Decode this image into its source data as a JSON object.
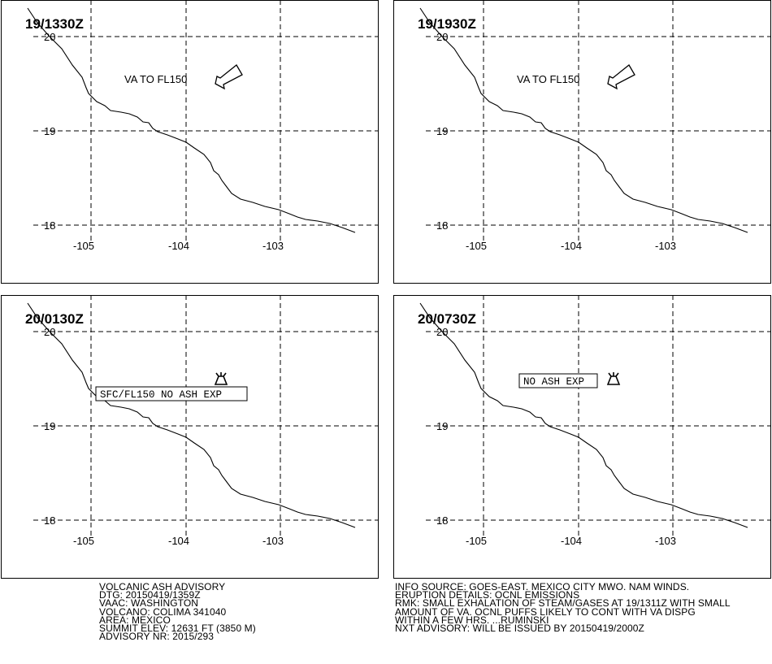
{
  "map_panels": [
    {
      "time_label": "19/1330Z",
      "lat_labels": [
        "20",
        "19",
        "18"
      ],
      "lon_labels": [
        "-105",
        "-104",
        "-103"
      ],
      "annotation": {
        "text": "VA TO FL150",
        "boxed": false
      },
      "symbol": "plume-arrow-icon"
    },
    {
      "time_label": "19/1930Z",
      "lat_labels": [
        "20",
        "19",
        "18"
      ],
      "lon_labels": [
        "-105",
        "-104",
        "-103"
      ],
      "annotation": {
        "text": "VA TO FL150",
        "boxed": false
      },
      "symbol": "plume-arrow-icon"
    },
    {
      "time_label": "20/0130Z",
      "lat_labels": [
        "20",
        "19",
        "18"
      ],
      "lon_labels": [
        "-105",
        "-104",
        "-103"
      ],
      "annotation": {
        "text": "SFC/FL150 NO ASH EXP",
        "boxed": true
      },
      "symbol": "volcano-icon"
    },
    {
      "time_label": "20/0730Z",
      "lat_labels": [
        "20",
        "19",
        "18"
      ],
      "lon_labels": [
        "-105",
        "-104",
        "-103"
      ],
      "annotation": {
        "text": "NO ASH EXP",
        "boxed": true
      },
      "symbol": "volcano-icon"
    }
  ],
  "advisory": {
    "left_lines": [
      "VOLCANIC ASH ADVISORY",
      "DTG: 20150419/1359Z",
      "VAAC: WASHINGTON",
      "VOLCANO: COLIMA 341040",
      "AREA: MEXICO",
      "SUMMIT ELEV: 12631 FT (3850 M)",
      "ADVISORY NR: 2015/293"
    ],
    "right_lines": [
      "INFO SOURCE: GOES-EAST. MEXICO CITY MWO. NAM WINDS.",
      "ERUPTION DETAILS: OCNL EMISSIONS",
      "RMK: SMALL EXHALATION OF STEAM/GASES AT 19/1311Z WITH SMALL",
      "AMOUNT OF VA. OCNL PUFFS LIKELY TO CONT WITH VA DISPG",
      "WITHIN A FEW HRS. ...RUMINSKI",
      "NXT ADVISORY: WILL BE ISSUED BY 20150419/2000Z"
    ]
  },
  "colors": {
    "line": "#000000",
    "background": "#ffffff"
  }
}
